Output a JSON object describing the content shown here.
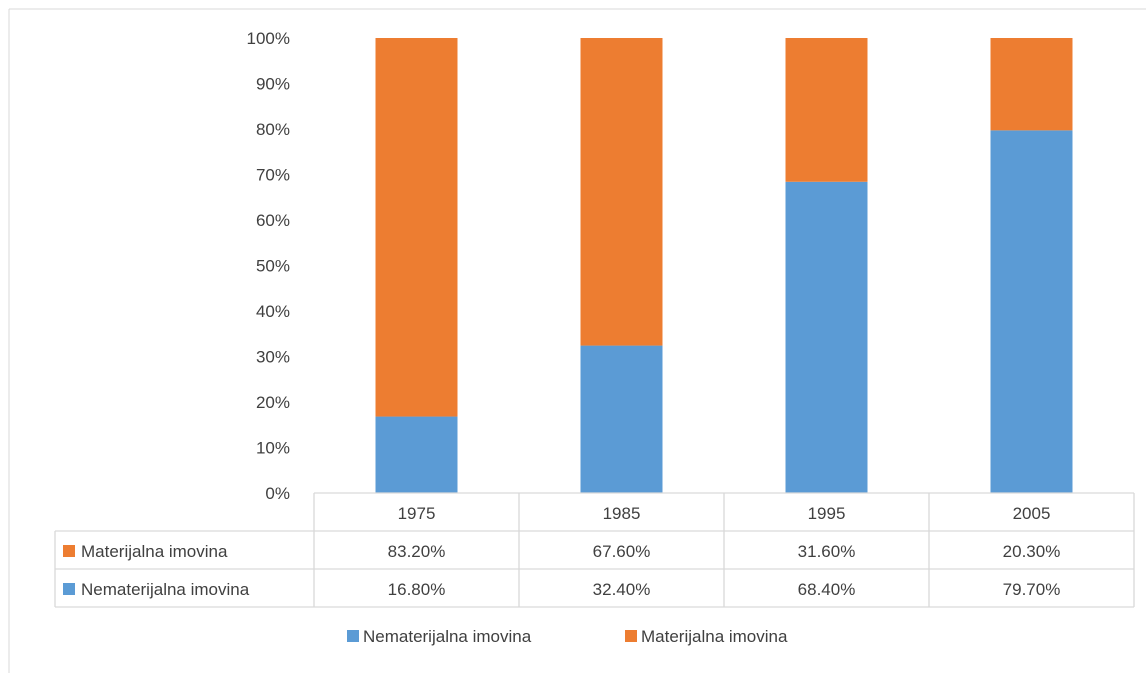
{
  "chart_data": {
    "type": "bar",
    "stacked": true,
    "percent": true,
    "categories": [
      "1975",
      "1985",
      "1995",
      "2005"
    ],
    "series": [
      {
        "name": "Nematerijalna imovina",
        "values": [
          16.8,
          32.4,
          68.4,
          79.7
        ],
        "labels": [
          "16.80%",
          "32.40%",
          "68.40%",
          "79.70%"
        ],
        "color": "#5b9bd5"
      },
      {
        "name": "Materijalna imovina",
        "values": [
          83.2,
          67.6,
          31.6,
          20.3
        ],
        "labels": [
          "83.20%",
          "67.60%",
          "31.60%",
          "20.30%"
        ],
        "color": "#ed7d31"
      }
    ],
    "ylim": [
      0,
      100
    ],
    "yticks": [
      "0%",
      "10%",
      "20%",
      "30%",
      "40%",
      "50%",
      "60%",
      "70%",
      "80%",
      "90%",
      "100%"
    ],
    "title": "",
    "xlabel": "",
    "ylabel": "",
    "data_table": true,
    "legend_position": "bottom",
    "gridlines": false
  },
  "colors": {
    "axis": "#d9d9d9",
    "text": "#404040",
    "caption_fragment": "#2e75b6"
  }
}
